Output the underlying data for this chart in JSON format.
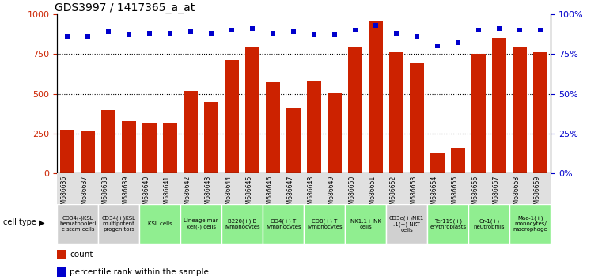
{
  "title": "GDS3997 / 1417365_a_at",
  "gsm_ids": [
    "GSM686636",
    "GSM686637",
    "GSM686638",
    "GSM686639",
    "GSM686640",
    "GSM686641",
    "GSM686642",
    "GSM686643",
    "GSM686644",
    "GSM686645",
    "GSM686646",
    "GSM686647",
    "GSM686648",
    "GSM686649",
    "GSM686650",
    "GSM686651",
    "GSM686652",
    "GSM686653",
    "GSM686654",
    "GSM686655",
    "GSM686656",
    "GSM686657",
    "GSM686658",
    "GSM686659"
  ],
  "counts": [
    275,
    270,
    400,
    330,
    320,
    320,
    520,
    450,
    710,
    790,
    570,
    410,
    580,
    510,
    790,
    960,
    760,
    690,
    130,
    160,
    750,
    850,
    790,
    760
  ],
  "percentile_ranks": [
    86,
    86,
    89,
    87,
    88,
    88,
    89,
    88,
    90,
    91,
    88,
    89,
    87,
    87,
    90,
    93,
    88,
    86,
    80,
    82,
    90,
    91,
    90,
    90
  ],
  "cell_types": [
    {
      "label": "CD34(-)KSL\nhematopoieti\nc stem cells",
      "color": "#d0d0d0",
      "span": 2
    },
    {
      "label": "CD34(+)KSL\nmultipotent\nprogenitors",
      "color": "#d0d0d0",
      "span": 2
    },
    {
      "label": "KSL cells",
      "color": "#90ee90",
      "span": 2
    },
    {
      "label": "Lineage mar\nker(-) cells",
      "color": "#90ee90",
      "span": 2
    },
    {
      "label": "B220(+) B\nlymphocytes",
      "color": "#90ee90",
      "span": 2
    },
    {
      "label": "CD4(+) T\nlymphocytes",
      "color": "#90ee90",
      "span": 2
    },
    {
      "label": "CD8(+) T\nlymphocytes",
      "color": "#90ee90",
      "span": 2
    },
    {
      "label": "NK1.1+ NK\ncells",
      "color": "#90ee90",
      "span": 2
    },
    {
      "label": "CD3e(+)NK1\n.1(+) NKT\ncells",
      "color": "#d0d0d0",
      "span": 2
    },
    {
      "label": "Ter119(+)\nerythroblasts",
      "color": "#90ee90",
      "span": 2
    },
    {
      "label": "Gr-1(+)\nneutrophils",
      "color": "#90ee90",
      "span": 2
    },
    {
      "label": "Mac-1(+)\nmonocytes/\nmacrophage",
      "color": "#90ee90",
      "span": 2
    }
  ],
  "bar_color": "#cc2200",
  "dot_color": "#0000cc",
  "ylim_left": [
    0,
    1000
  ],
  "ylim_right": [
    0,
    100
  ],
  "yticks_left": [
    0,
    250,
    500,
    750,
    1000
  ],
  "yticks_right": [
    0,
    25,
    50,
    75,
    100
  ],
  "background_color": "#ffffff",
  "title_fontsize": 10
}
